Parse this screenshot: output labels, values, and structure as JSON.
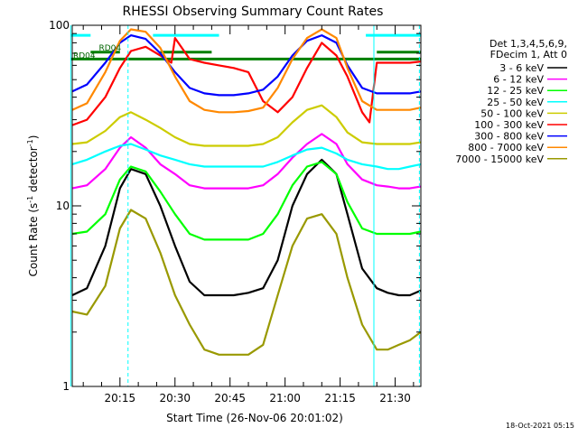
{
  "chart_data": {
    "type": "line",
    "title": "RHESSI Observing Summary Count Rates",
    "xlabel": "Start Time (26-Nov-06 20:01:02)",
    "ylabel": "Count Rate (s",
    "ylabel_sup": "-1",
    "ylabel_tail": " detector",
    "ylabel_close": ")",
    "yscale": "log",
    "ylim": [
      1,
      100
    ],
    "yticks": [
      1,
      10,
      100
    ],
    "ytick_labels": [
      "1",
      "10",
      "100"
    ],
    "xlim_min": [
      1,
      96
    ],
    "x_ticks_min": [
      14,
      29,
      44,
      59,
      74,
      89
    ],
    "x_tick_labels": [
      "20:15",
      "20:30",
      "20:45",
      "21:00",
      "21:15",
      "21:30"
    ],
    "legend_header": [
      "Det 1,3,4,5,6,9,",
      "FDecim 1, Att 0"
    ],
    "legend_placement": "right",
    "timestamp": "18-Oct-2021 05:15",
    "annotations": [
      {
        "text": "RD04",
        "x_min": 1,
        "y": 68
      },
      {
        "text": "RD04",
        "x_min": 8,
        "y": 75
      }
    ],
    "series": [
      {
        "name": "3 - 6 keV",
        "color": "#000000",
        "x": [
          1,
          5,
          10,
          14,
          17,
          21,
          25,
          29,
          33,
          37,
          41,
          45,
          49,
          53,
          57,
          61,
          65,
          69,
          73,
          76,
          80,
          84,
          87,
          90,
          93,
          96
        ],
        "y": [
          3.2,
          3.5,
          6.0,
          12.5,
          16.0,
          15.0,
          10.0,
          6.0,
          3.8,
          3.2,
          3.2,
          3.2,
          3.3,
          3.5,
          5.0,
          10.0,
          15.0,
          18.0,
          15.0,
          9.0,
          4.5,
          3.5,
          3.3,
          3.2,
          3.2,
          3.4
        ]
      },
      {
        "name": "6 - 12 keV",
        "color": "#ff00ff",
        "x": [
          1,
          5,
          10,
          14,
          17,
          21,
          25,
          29,
          33,
          37,
          41,
          45,
          49,
          53,
          57,
          61,
          65,
          69,
          73,
          76,
          80,
          84,
          87,
          90,
          93,
          96
        ],
        "y": [
          12.5,
          13.0,
          16.0,
          21.0,
          24.0,
          21.0,
          17.0,
          15.0,
          13.0,
          12.5,
          12.5,
          12.5,
          12.5,
          13.0,
          15.0,
          18.5,
          22.0,
          25.0,
          22.0,
          17.0,
          14.0,
          13.0,
          12.8,
          12.5,
          12.5,
          12.8
        ]
      },
      {
        "name": "12 - 25 keV",
        "color": "#00ff00",
        "x": [
          1,
          5,
          10,
          14,
          17,
          21,
          25,
          29,
          33,
          37,
          41,
          45,
          49,
          53,
          57,
          61,
          65,
          69,
          73,
          76,
          80,
          84,
          87,
          90,
          93,
          96
        ],
        "y": [
          7.0,
          7.2,
          9.0,
          14.0,
          16.5,
          15.5,
          12.0,
          9.0,
          7.0,
          6.5,
          6.5,
          6.5,
          6.5,
          7.0,
          9.0,
          13.0,
          16.5,
          17.5,
          15.0,
          10.5,
          7.5,
          7.0,
          7.0,
          7.0,
          7.0,
          7.2
        ]
      },
      {
        "name": "25 - 50 keV",
        "color": "#00ffff",
        "x": [
          1,
          5,
          10,
          14,
          17,
          21,
          25,
          29,
          33,
          37,
          41,
          45,
          49,
          53,
          57,
          61,
          65,
          69,
          73,
          76,
          80,
          84,
          87,
          90,
          93,
          96
        ],
        "y": [
          17.0,
          18.0,
          20.0,
          21.5,
          22.0,
          20.5,
          19.0,
          18.0,
          17.0,
          16.5,
          16.5,
          16.5,
          16.5,
          16.5,
          17.5,
          19.0,
          20.5,
          21.0,
          19.5,
          18.0,
          17.0,
          16.5,
          16.0,
          16.0,
          16.5,
          17.0
        ]
      },
      {
        "name": "50 - 100 keV",
        "color": "#cccc00",
        "x": [
          1,
          5,
          10,
          14,
          17,
          21,
          25,
          29,
          33,
          37,
          41,
          45,
          49,
          53,
          57,
          61,
          65,
          69,
          73,
          76,
          80,
          84,
          87,
          90,
          93,
          96
        ],
        "y": [
          22.0,
          22.5,
          26.0,
          31.0,
          33.0,
          30.0,
          27.0,
          24.0,
          22.0,
          21.5,
          21.5,
          21.5,
          21.5,
          22.0,
          24.0,
          29.0,
          34.0,
          36.0,
          31.0,
          25.5,
          22.5,
          22.0,
          22.0,
          22.0,
          22.0,
          22.5
        ]
      },
      {
        "name": "100 - 300 keV",
        "color": "#ff0000",
        "x": [
          1,
          5,
          10,
          14,
          17,
          21,
          25,
          28,
          29,
          33,
          37,
          41,
          45,
          49,
          53,
          57,
          61,
          65,
          69,
          73,
          76,
          80,
          82,
          84,
          87,
          90,
          93,
          96
        ],
        "y": [
          28.0,
          30.0,
          40.0,
          58.0,
          72.0,
          76.0,
          68.0,
          62.0,
          85.0,
          65.0,
          62.0,
          60.0,
          58.0,
          55.0,
          38.0,
          33.0,
          40.0,
          58.0,
          80.0,
          68.0,
          52.0,
          33.0,
          29.0,
          62.0,
          62.0,
          62.0,
          62.0,
          63.0
        ]
      },
      {
        "name": "300 - 800 keV",
        "color": "#0000ff",
        "x": [
          1,
          5,
          10,
          14,
          17,
          21,
          25,
          29,
          33,
          37,
          41,
          45,
          49,
          53,
          57,
          61,
          65,
          69,
          73,
          76,
          80,
          84,
          87,
          90,
          93,
          96
        ],
        "y": [
          43.0,
          47.0,
          62.0,
          80.0,
          88.0,
          84.0,
          70.0,
          55.0,
          45.0,
          42.0,
          41.0,
          41.0,
          42.0,
          44.0,
          52.0,
          68.0,
          82.0,
          88.0,
          80.0,
          60.0,
          45.0,
          42.0,
          42.0,
          42.0,
          42.0,
          43.0
        ]
      },
      {
        "name": "800 - 7000 keV",
        "color": "#ff8800",
        "x": [
          1,
          5,
          10,
          14,
          17,
          21,
          25,
          29,
          33,
          37,
          41,
          45,
          49,
          53,
          57,
          61,
          65,
          69,
          73,
          76,
          80,
          84,
          87,
          90,
          93,
          96
        ],
        "y": [
          34.0,
          37.0,
          55.0,
          82.0,
          95.0,
          92.0,
          75.0,
          52.0,
          38.0,
          34.0,
          33.0,
          33.0,
          33.5,
          35.0,
          45.0,
          65.0,
          85.0,
          95.0,
          85.0,
          58.0,
          38.0,
          34.0,
          34.0,
          34.0,
          34.0,
          35.0
        ]
      },
      {
        "name": "7000 - 15000 keV",
        "color": "#999900",
        "x": [
          1,
          5,
          10,
          14,
          17,
          21,
          25,
          29,
          33,
          37,
          41,
          45,
          49,
          53,
          57,
          61,
          65,
          69,
          73,
          76,
          80,
          84,
          87,
          90,
          93,
          96
        ],
        "y": [
          2.6,
          2.5,
          3.6,
          7.5,
          9.5,
          8.5,
          5.5,
          3.2,
          2.2,
          1.6,
          1.5,
          1.5,
          1.5,
          1.7,
          3.2,
          6.0,
          8.5,
          9.0,
          7.0,
          4.0,
          2.2,
          1.6,
          1.6,
          1.7,
          1.8,
          2.0
        ]
      }
    ],
    "flags": [
      {
        "color": "#00ffff",
        "segments": [
          [
            0.5,
            6
          ],
          [
            23,
            41
          ],
          [
            81,
            96
          ]
        ],
        "y": 88
      },
      {
        "color": "#008000",
        "segments": [
          [
            0.5,
            96
          ]
        ],
        "y": 65
      },
      {
        "color": "#008000",
        "segments": [
          [
            6,
            14
          ],
          [
            25,
            39
          ],
          [
            84,
            96
          ]
        ],
        "y": 71
      }
    ],
    "vlines_min": [
      {
        "x": 0.6,
        "color": "#00ffff",
        "style": "solid"
      },
      {
        "x": 16.2,
        "color": "#00ffff",
        "style": "dashed"
      },
      {
        "x": 83.2,
        "color": "#00ffff",
        "style": "solid"
      },
      {
        "x": 95.6,
        "color": "#00ffff",
        "style": "dashed"
      }
    ]
  }
}
